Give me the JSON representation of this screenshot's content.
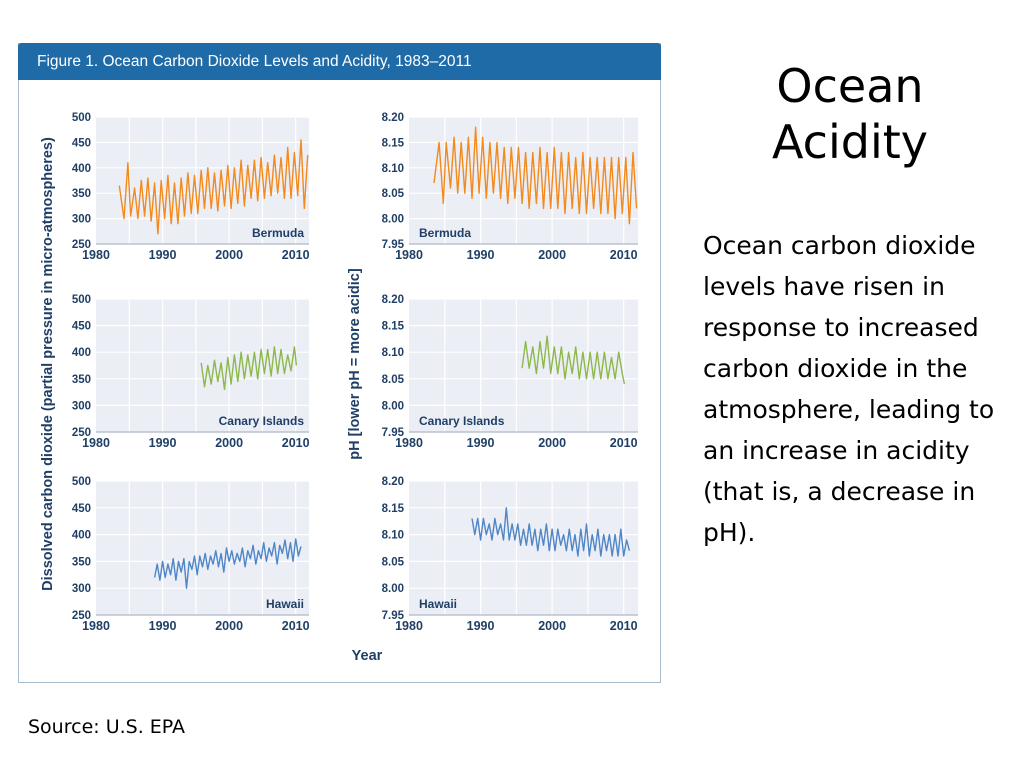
{
  "figure": {
    "title": "Figure 1. Ocean Carbon Dioxide Levels and Acidity, 1983–2011",
    "left_ylabel": "Dissolved carbon dioxide (partial pressure in micro-atmospheres)",
    "right_ylabel": "pH [lower pH = more acidic]",
    "xlabel": "Year"
  },
  "slide": {
    "title_line1": "Ocean",
    "title_line2": "Acidity",
    "body": "Ocean carbon dioxide levels have risen in response to increased carbon dioxide in the atmosphere, leading to an increase in acidity (that is, a decrease in pH).",
    "source": "Source: U.S. EPA"
  },
  "colors": {
    "header": "#1f6ba8",
    "axis_text": "#1f3f66",
    "plot_bg": "#eceef6",
    "grid": "#ffffff",
    "bermuda": "#f28a1e",
    "canary": "#8db84a",
    "hawaii": "#4f86c6"
  },
  "chart_data": [
    {
      "type": "line",
      "location": "Bermuda",
      "measure": "CO2",
      "xlim": [
        1980,
        2012
      ],
      "ylim": [
        250,
        500
      ],
      "xticks": [
        1980,
        1990,
        2000,
        2010
      ],
      "yticks": [
        250,
        300,
        350,
        400,
        450,
        500
      ],
      "series": [
        {
          "name": "Bermuda",
          "color": "#f28a1e",
          "x": [
            1983.5,
            1984.2,
            1984.8,
            1985.2,
            1985.8,
            1986.3,
            1986.8,
            1987.3,
            1987.8,
            1988.3,
            1988.8,
            1989.3,
            1989.8,
            1990.3,
            1990.8,
            1991.3,
            1991.8,
            1992.3,
            1992.8,
            1993.3,
            1993.8,
            1994.3,
            1994.8,
            1995.3,
            1995.8,
            1996.3,
            1996.8,
            1997.3,
            1997.8,
            1998.3,
            1998.8,
            1999.3,
            1999.8,
            2000.3,
            2000.8,
            2001.3,
            2001.8,
            2002.3,
            2002.8,
            2003.3,
            2003.8,
            2004.3,
            2004.8,
            2005.3,
            2005.8,
            2006.3,
            2006.8,
            2007.3,
            2007.8,
            2008.3,
            2008.8,
            2009.3,
            2009.8,
            2010.3,
            2010.8,
            2011.3,
            2011.8
          ],
          "y": [
            365,
            300,
            410,
            305,
            360,
            300,
            375,
            305,
            380,
            295,
            370,
            270,
            375,
            300,
            385,
            290,
            370,
            290,
            380,
            305,
            390,
            310,
            385,
            310,
            395,
            320,
            400,
            320,
            390,
            315,
            395,
            325,
            405,
            320,
            400,
            330,
            415,
            325,
            405,
            340,
            415,
            335,
            420,
            340,
            410,
            345,
            425,
            350,
            420,
            340,
            440,
            340,
            430,
            345,
            455,
            320,
            425
          ]
        }
      ]
    },
    {
      "type": "line",
      "location": "Bermuda",
      "measure": "pH",
      "xlim": [
        1980,
        2012
      ],
      "ylim": [
        7.95,
        8.2
      ],
      "xticks": [
        1980,
        1990,
        2000,
        2010
      ],
      "yticks": [
        7.95,
        8.0,
        8.05,
        8.1,
        8.15,
        8.2
      ],
      "series": [
        {
          "name": "Bermuda",
          "color": "#f28a1e",
          "x": [
            1983.5,
            1984.2,
            1984.8,
            1985.2,
            1985.8,
            1986.3,
            1986.8,
            1987.3,
            1987.8,
            1988.3,
            1988.8,
            1989.3,
            1989.8,
            1990.3,
            1990.8,
            1991.3,
            1991.8,
            1992.3,
            1992.8,
            1993.3,
            1993.8,
            1994.3,
            1994.8,
            1995.3,
            1995.8,
            1996.3,
            1996.8,
            1997.3,
            1997.8,
            1998.3,
            1998.8,
            1999.3,
            1999.8,
            2000.3,
            2000.8,
            2001.3,
            2001.8,
            2002.3,
            2002.8,
            2003.3,
            2003.8,
            2004.3,
            2004.8,
            2005.3,
            2005.8,
            2006.3,
            2006.8,
            2007.3,
            2007.8,
            2008.3,
            2008.8,
            2009.3,
            2009.8,
            2010.3,
            2010.8,
            2011.3,
            2011.8
          ],
          "y": [
            8.07,
            8.15,
            8.03,
            8.15,
            8.06,
            8.16,
            8.05,
            8.15,
            8.05,
            8.16,
            8.04,
            8.18,
            8.05,
            8.16,
            8.04,
            8.15,
            8.05,
            8.15,
            8.04,
            8.14,
            8.03,
            8.14,
            8.04,
            8.14,
            8.03,
            8.13,
            8.02,
            8.13,
            8.03,
            8.14,
            8.02,
            8.13,
            8.02,
            8.14,
            8.02,
            8.13,
            8.01,
            8.13,
            8.02,
            8.12,
            8.01,
            8.13,
            8.01,
            8.12,
            8.02,
            8.12,
            8.01,
            8.12,
            8.01,
            8.12,
            8.0,
            8.12,
            8.01,
            8.12,
            7.99,
            8.13,
            8.02
          ]
        }
      ]
    },
    {
      "type": "line",
      "location": "Canary Islands",
      "measure": "CO2",
      "xlim": [
        1980,
        2012
      ],
      "ylim": [
        250,
        500
      ],
      "xticks": [
        1980,
        1990,
        2000,
        2010
      ],
      "yticks": [
        250,
        300,
        350,
        400,
        450,
        500
      ],
      "series": [
        {
          "name": "Canary Islands",
          "color": "#8db84a",
          "x": [
            1995.8,
            1996.3,
            1996.8,
            1997.3,
            1997.8,
            1998.3,
            1998.8,
            1999.3,
            1999.8,
            2000.3,
            2000.8,
            2001.3,
            2001.8,
            2002.3,
            2002.8,
            2003.3,
            2003.8,
            2004.3,
            2004.8,
            2005.3,
            2005.8,
            2006.3,
            2006.8,
            2007.3,
            2007.8,
            2008.3,
            2008.8,
            2009.3,
            2009.8,
            2010.1
          ],
          "y": [
            380,
            335,
            375,
            340,
            385,
            345,
            380,
            330,
            390,
            340,
            395,
            345,
            400,
            350,
            395,
            355,
            400,
            350,
            405,
            360,
            405,
            355,
            410,
            360,
            405,
            360,
            395,
            365,
            410,
            375
          ]
        }
      ]
    },
    {
      "type": "line",
      "location": "Canary Islands",
      "measure": "pH",
      "xlim": [
        1980,
        2012
      ],
      "ylim": [
        7.95,
        8.2
      ],
      "xticks": [
        1980,
        1990,
        2000,
        2010
      ],
      "yticks": [
        7.95,
        8.0,
        8.05,
        8.1,
        8.15,
        8.2
      ],
      "series": [
        {
          "name": "Canary Islands",
          "color": "#8db84a",
          "x": [
            1995.8,
            1996.3,
            1996.8,
            1997.3,
            1997.8,
            1998.3,
            1998.8,
            1999.3,
            1999.8,
            2000.3,
            2000.8,
            2001.3,
            2001.8,
            2002.3,
            2002.8,
            2003.3,
            2003.8,
            2004.3,
            2004.8,
            2005.3,
            2005.8,
            2006.3,
            2006.8,
            2007.3,
            2007.8,
            2008.3,
            2008.8,
            2009.3,
            2009.8,
            2010.1
          ],
          "y": [
            8.07,
            8.12,
            8.07,
            8.11,
            8.06,
            8.12,
            8.07,
            8.13,
            8.06,
            8.11,
            8.06,
            8.11,
            8.05,
            8.1,
            8.06,
            8.11,
            8.05,
            8.1,
            8.05,
            8.1,
            8.05,
            8.1,
            8.05,
            8.1,
            8.05,
            8.09,
            8.05,
            8.1,
            8.06,
            8.04
          ]
        }
      ]
    },
    {
      "type": "line",
      "location": "Hawaii",
      "measure": "CO2",
      "xlim": [
        1980,
        2012
      ],
      "ylim": [
        250,
        500
      ],
      "xticks": [
        1980,
        1990,
        2000,
        2010
      ],
      "yticks": [
        250,
        300,
        350,
        400,
        450,
        500
      ],
      "series": [
        {
          "name": "Hawaii",
          "color": "#4f86c6",
          "x": [
            1988.8,
            1989.2,
            1989.6,
            1990.0,
            1990.4,
            1990.8,
            1991.2,
            1991.6,
            1992.0,
            1992.4,
            1992.8,
            1993.2,
            1993.6,
            1994.0,
            1994.4,
            1994.8,
            1995.2,
            1995.6,
            1996.0,
            1996.4,
            1996.8,
            1997.2,
            1997.6,
            1998.0,
            1998.4,
            1998.8,
            1999.2,
            1999.6,
            2000.0,
            2000.4,
            2000.8,
            2001.2,
            2001.6,
            2002.0,
            2002.4,
            2002.8,
            2003.2,
            2003.6,
            2004.0,
            2004.4,
            2004.8,
            2005.2,
            2005.6,
            2006.0,
            2006.4,
            2006.8,
            2007.2,
            2007.6,
            2008.0,
            2008.4,
            2008.8,
            2009.2,
            2009.6,
            2010.0,
            2010.4,
            2010.8
          ],
          "y": [
            320,
            345,
            315,
            350,
            320,
            345,
            325,
            355,
            315,
            350,
            330,
            355,
            300,
            350,
            335,
            360,
            325,
            360,
            340,
            365,
            335,
            360,
            345,
            370,
            340,
            365,
            330,
            375,
            350,
            370,
            345,
            365,
            350,
            375,
            340,
            370,
            355,
            380,
            345,
            370,
            355,
            385,
            350,
            375,
            360,
            385,
            345,
            380,
            365,
            390,
            355,
            385,
            350,
            392,
            360,
            378
          ]
        }
      ]
    },
    {
      "type": "line",
      "location": "Hawaii",
      "measure": "pH",
      "xlim": [
        1980,
        2012
      ],
      "ylim": [
        7.95,
        8.2
      ],
      "xticks": [
        1980,
        1990,
        2000,
        2010
      ],
      "yticks": [
        7.95,
        8.0,
        8.05,
        8.1,
        8.15,
        8.2
      ],
      "series": [
        {
          "name": "Hawaii",
          "color": "#4f86c6",
          "x": [
            1988.8,
            1989.2,
            1989.6,
            1990.0,
            1990.4,
            1990.8,
            1991.2,
            1991.6,
            1992.0,
            1992.4,
            1992.8,
            1993.2,
            1993.6,
            1994.0,
            1994.4,
            1994.8,
            1995.2,
            1995.6,
            1996.0,
            1996.4,
            1996.8,
            1997.2,
            1997.6,
            1998.0,
            1998.4,
            1998.8,
            1999.2,
            1999.6,
            2000.0,
            2000.4,
            2000.8,
            2001.2,
            2001.6,
            2002.0,
            2002.4,
            2002.8,
            2003.2,
            2003.6,
            2004.0,
            2004.4,
            2004.8,
            2005.2,
            2005.6,
            2006.0,
            2006.4,
            2006.8,
            2007.2,
            2007.6,
            2008.0,
            2008.4,
            2008.8,
            2009.2,
            2009.6,
            2010.0,
            2010.4,
            2010.8
          ],
          "y": [
            8.13,
            8.1,
            8.13,
            8.09,
            8.13,
            8.1,
            8.12,
            8.09,
            8.13,
            8.1,
            8.12,
            8.09,
            8.15,
            8.09,
            8.12,
            8.09,
            8.12,
            8.08,
            8.11,
            8.08,
            8.12,
            8.08,
            8.11,
            8.07,
            8.11,
            8.08,
            8.12,
            8.07,
            8.11,
            8.07,
            8.11,
            8.08,
            8.1,
            8.07,
            8.11,
            8.07,
            8.1,
            8.06,
            8.11,
            8.07,
            8.12,
            8.06,
            8.1,
            8.07,
            8.11,
            8.06,
            8.1,
            8.07,
            8.1,
            8.06,
            8.1,
            8.06,
            8.11,
            8.06,
            8.09,
            8.07
          ]
        }
      ]
    }
  ]
}
